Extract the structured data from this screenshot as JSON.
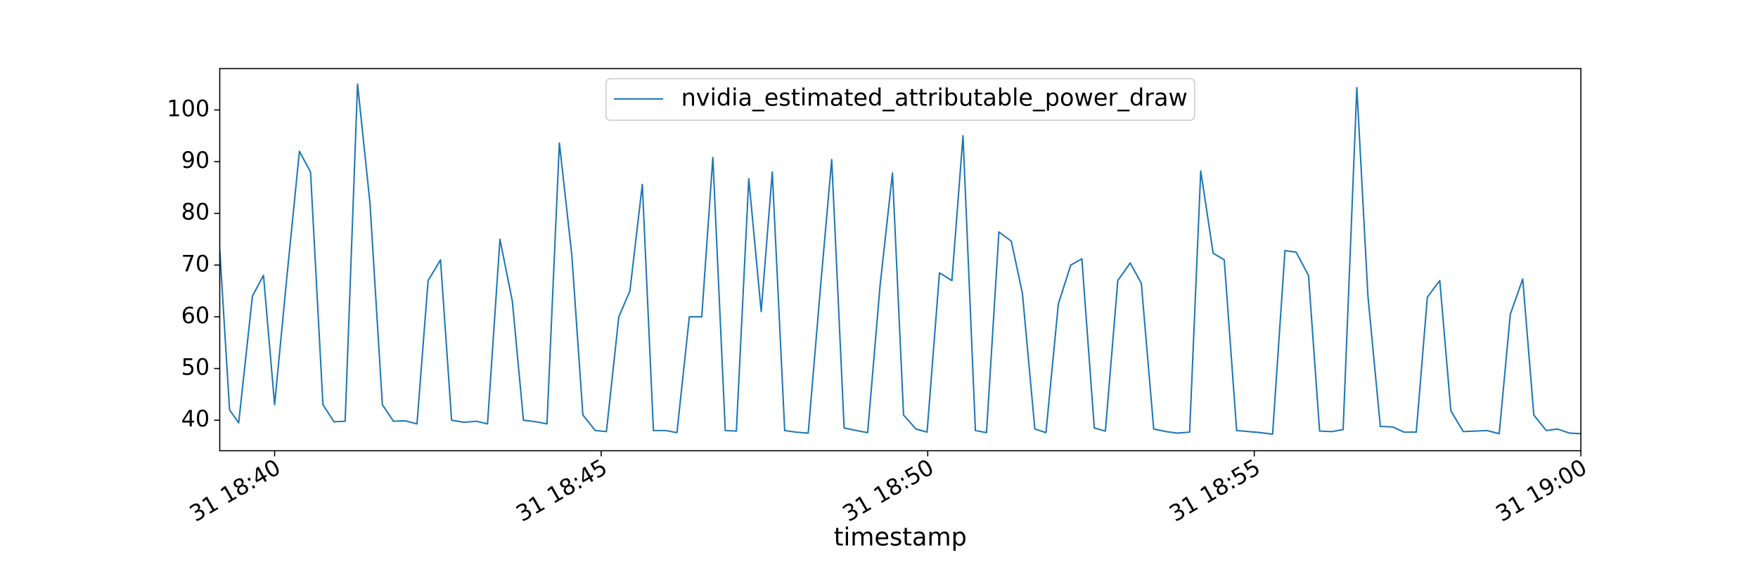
{
  "chart_data": {
    "type": "line",
    "x_label": "timestamp",
    "x": [
      39.16,
      39.31,
      39.45,
      39.66,
      39.83,
      40.0,
      40.19,
      40.38,
      40.55,
      40.74,
      40.91,
      41.08,
      41.27,
      41.46,
      41.65,
      41.82,
      41.99,
      42.18,
      42.35,
      42.54,
      42.71,
      42.9,
      43.09,
      43.26,
      43.45,
      43.64,
      43.81,
      44.0,
      44.17,
      44.36,
      44.55,
      44.72,
      44.91,
      45.08,
      45.27,
      45.44,
      45.63,
      45.8,
      45.99,
      46.16,
      46.35,
      46.54,
      46.71,
      46.9,
      47.07,
      47.26,
      47.45,
      47.62,
      47.81,
      47.98,
      48.17,
      48.36,
      48.53,
      48.72,
      48.91,
      49.08,
      49.27,
      49.46,
      49.63,
      49.82,
      49.99,
      50.18,
      50.37,
      50.54,
      50.73,
      50.9,
      51.09,
      51.28,
      51.45,
      51.64,
      51.81,
      52.0,
      52.19,
      52.36,
      52.55,
      52.72,
      52.91,
      53.1,
      53.27,
      53.46,
      53.65,
      53.82,
      54.01,
      54.18,
      54.37,
      54.54,
      54.73,
      54.92,
      55.09,
      55.28,
      55.47,
      55.64,
      55.83,
      56.0,
      56.19,
      56.36,
      56.57,
      56.74,
      56.93,
      57.12,
      57.29,
      57.48,
      57.65,
      57.84,
      58.01,
      58.2,
      58.39,
      58.56,
      58.75,
      58.92,
      59.11,
      59.28,
      59.47,
      59.64,
      59.83,
      60.0
    ],
    "series": [
      {
        "name": "nvidia_estimated_attributable_power_draw",
        "color": "#1f77b4",
        "values": [
          73,
          42,
          39.5,
          64,
          68,
          43,
          68,
          92,
          88,
          43,
          39.7,
          39.8,
          105,
          82,
          43,
          39.8,
          39.9,
          39.3,
          67,
          71,
          40,
          39.6,
          39.8,
          39.3,
          75,
          63,
          40,
          39.7,
          39.3,
          93.6,
          72,
          41,
          38,
          37.8,
          60,
          65,
          85.6,
          38,
          38,
          37.6,
          60,
          60,
          90.8,
          38,
          37.9,
          86.7,
          61,
          88,
          38,
          37.7,
          37.5,
          66,
          90.4,
          38.5,
          38,
          37.6,
          66,
          87.8,
          41,
          38.3,
          37.7,
          68.5,
          67,
          95,
          38,
          37.6,
          76.4,
          74.6,
          64.5,
          38.3,
          37.6,
          62.5,
          70,
          71.2,
          38.5,
          37.9,
          67,
          70.4,
          66.5,
          38.3,
          37.8,
          37.5,
          37.7,
          88.2,
          72.3,
          71,
          38,
          37.8,
          37.6,
          37.3,
          72.8,
          72.5,
          68,
          37.9,
          37.8,
          38.2,
          104.3,
          64,
          38.8,
          38.7,
          37.7,
          37.7,
          63.8,
          67,
          41.8,
          37.8,
          37.9,
          38,
          37.4,
          60.5,
          67.3,
          41,
          38,
          38.3,
          37.5,
          37.4
        ]
      }
    ],
    "xlim": [
      39.16,
      60.0
    ],
    "xticks": [
      {
        "value": 40,
        "label": "31 18:40"
      },
      {
        "value": 45,
        "label": "31 18:45"
      },
      {
        "value": 50,
        "label": "31 18:50"
      },
      {
        "value": 55,
        "label": "31 18:55"
      },
      {
        "value": 60,
        "label": "31 19:00"
      }
    ],
    "ylim": [
      34.1,
      108.0
    ],
    "yticks": [
      40,
      50,
      60,
      70,
      80,
      90,
      100
    ],
    "grid": false,
    "legend": "upper center"
  }
}
